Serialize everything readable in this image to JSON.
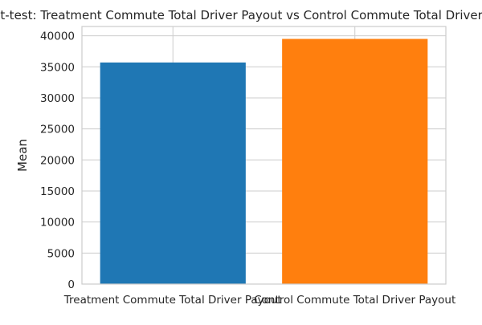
{
  "chart_data": {
    "type": "bar",
    "title": "t-test: Treatment Commute Total Driver Payout vs Control Commute Total Driver Payout",
    "xlabel": "",
    "ylabel": "Mean",
    "categories": [
      "Treatment Commute Total Driver Payout",
      "Control Commute Total Driver Payout"
    ],
    "values": [
      35700,
      39500
    ],
    "colors": [
      "#1f77b4",
      "#ff7f0e"
    ],
    "ylim": [
      0,
      41500
    ],
    "yticks": [
      0,
      5000,
      10000,
      15000,
      20000,
      25000,
      30000,
      35000,
      40000
    ],
    "grid": true,
    "legend": "none"
  }
}
